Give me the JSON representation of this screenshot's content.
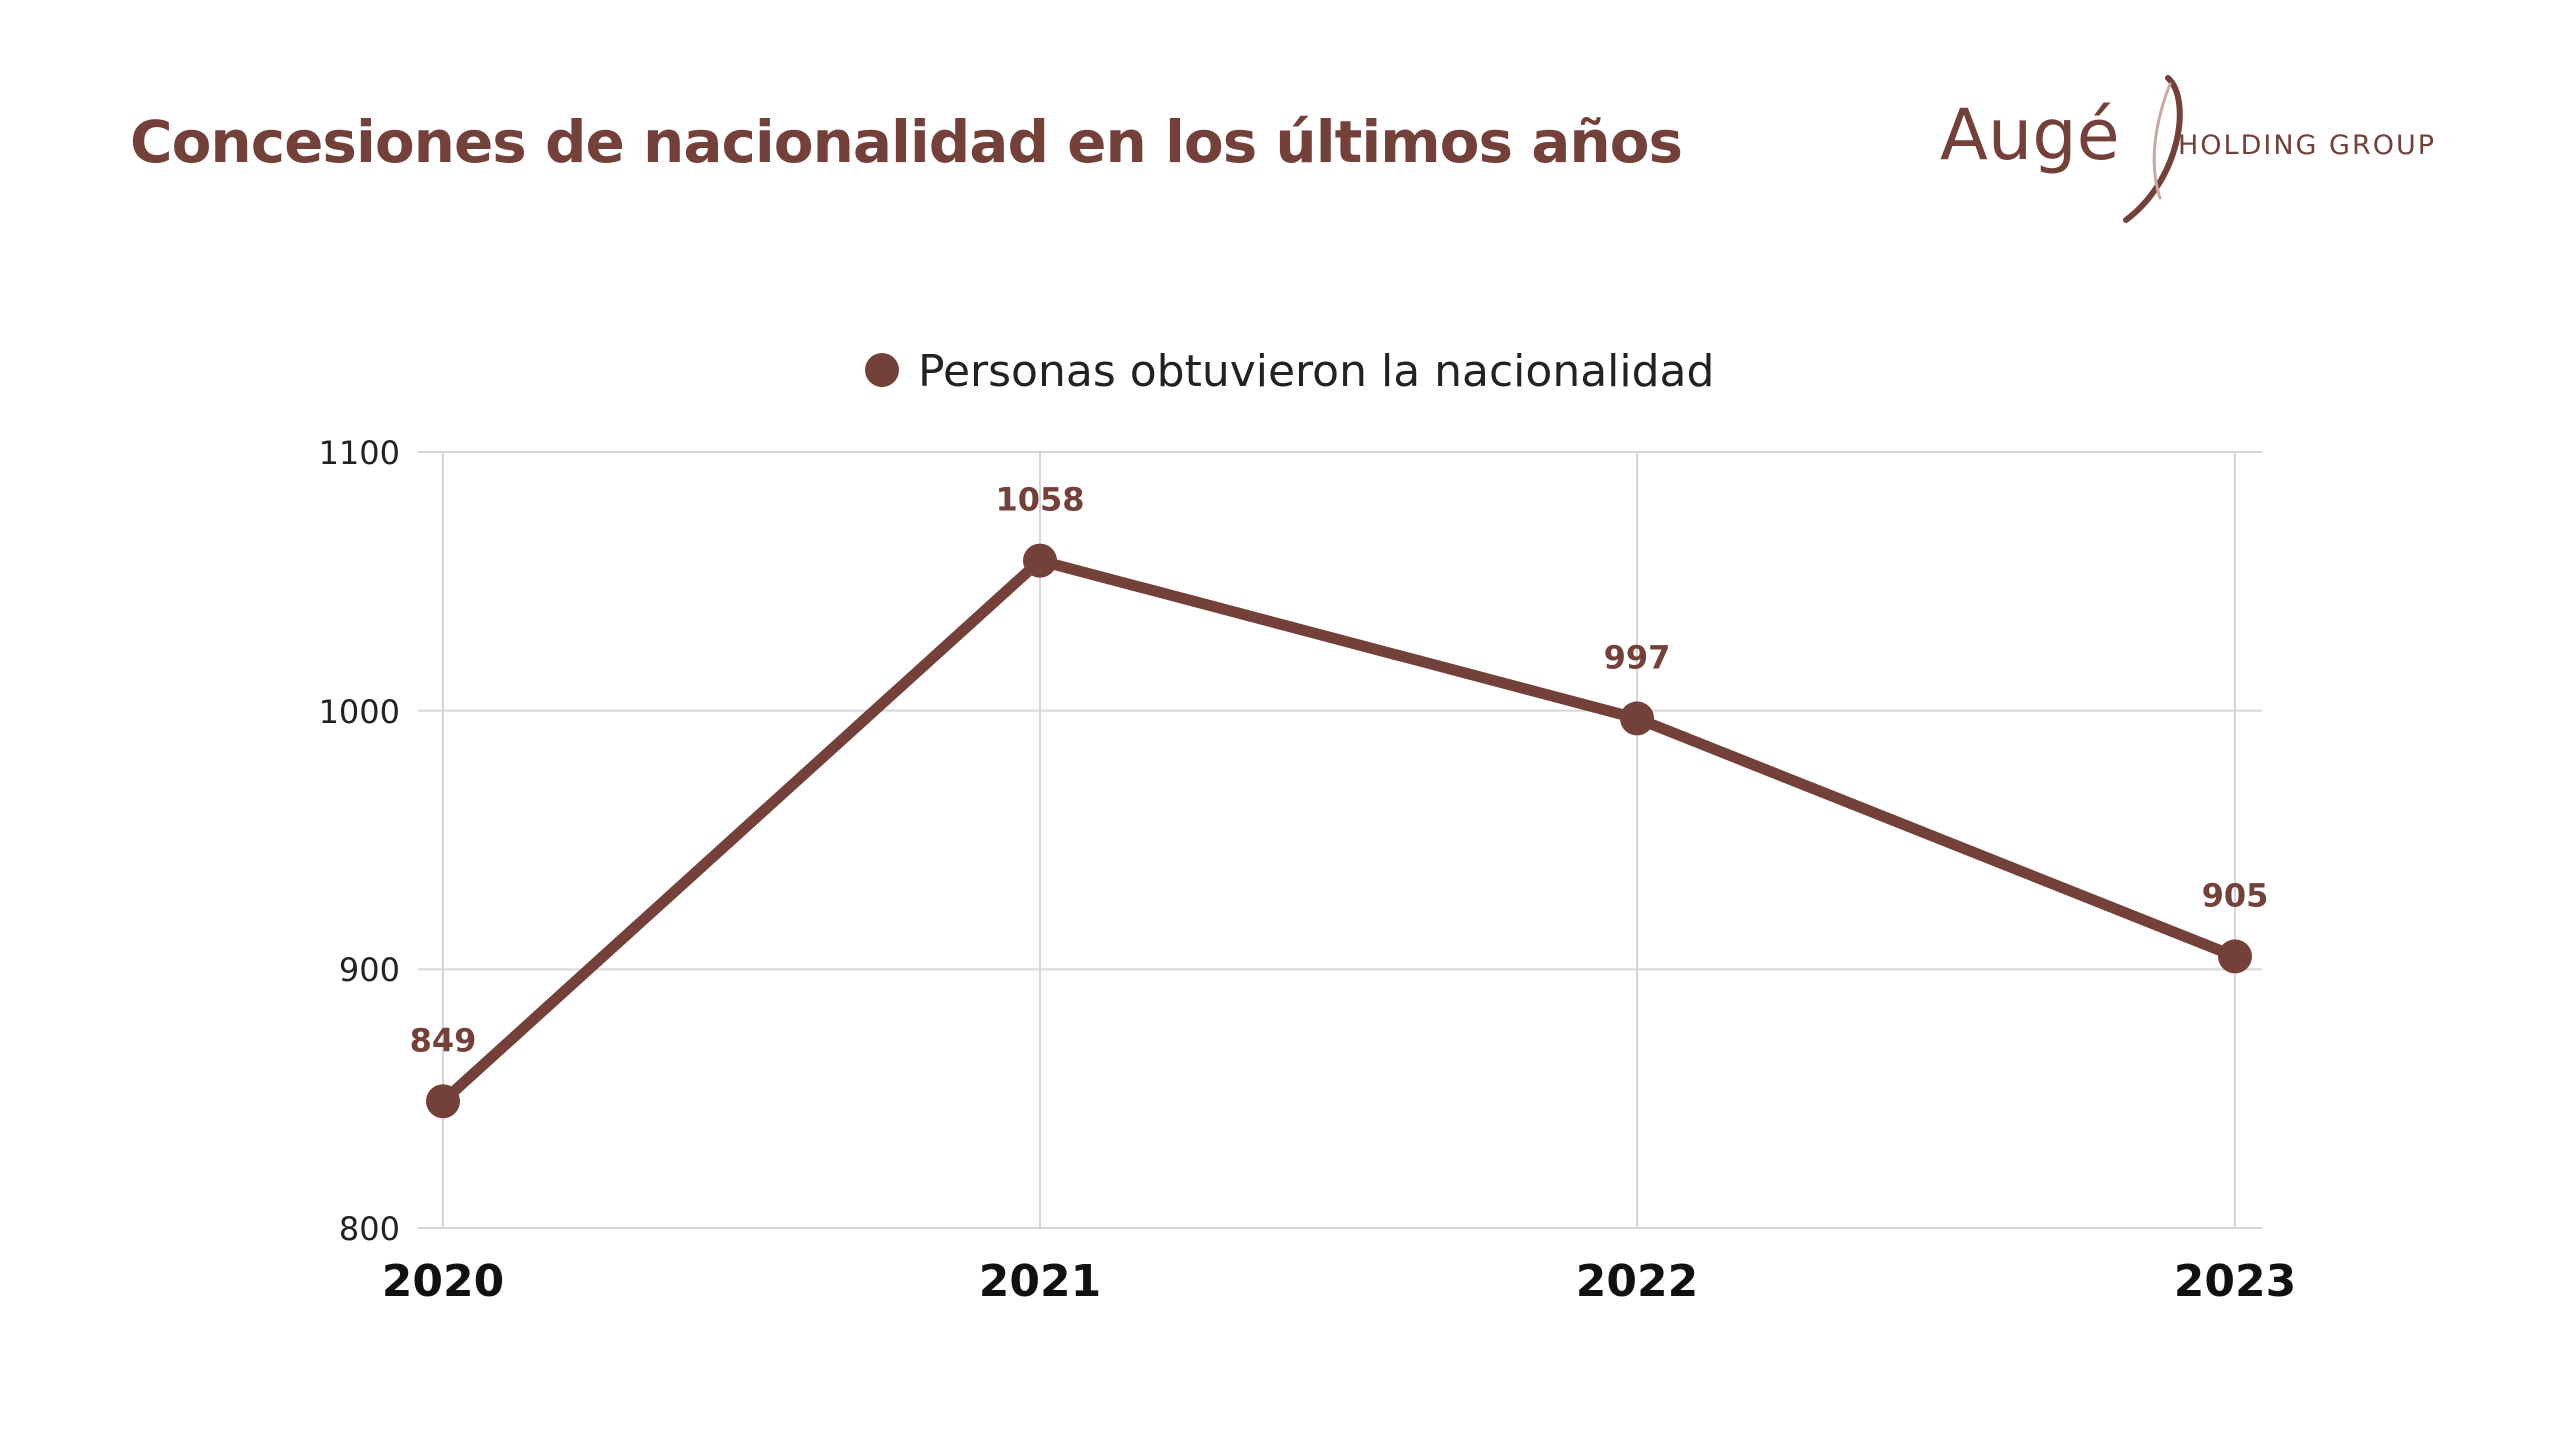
{
  "header": {
    "title": "Concesiones de nacionalidad en los últimos años"
  },
  "logo": {
    "wordmark": "Augé",
    "tagline": "HOLDING GROUP"
  },
  "colors": {
    "accent": "#73403A",
    "grid": "#d6d6d6",
    "text": "#222222"
  },
  "chart_data": {
    "type": "line",
    "x": [
      "2020",
      "2021",
      "2022",
      "2023"
    ],
    "series": [
      {
        "name": "Personas obtuvieron la nacionalidad",
        "values": [
          849,
          1058,
          997,
          905
        ]
      }
    ],
    "data_labels": [
      "849",
      "1058",
      "997",
      "905"
    ],
    "yticks": [
      "800",
      "900",
      "1000",
      "1100"
    ],
    "ylim": [
      800,
      1100
    ],
    "grid": true,
    "legend": "top-center",
    "markers": true
  }
}
